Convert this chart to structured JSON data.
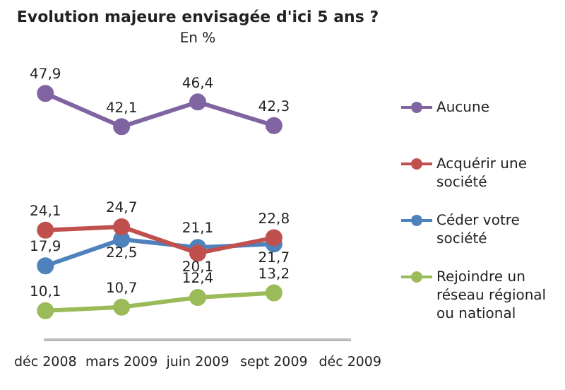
{
  "chart_data": {
    "type": "line",
    "title": "Evolution majeure envisagée d'ici 5 ans ?",
    "subtitle": "En %",
    "categories": [
      "déc 2008",
      "mars 2009",
      "juin 2009",
      "sept 2009",
      "déc 2009"
    ],
    "series": [
      {
        "name": "Aucune",
        "color": "#8064a2",
        "values": [
          47.9,
          42.1,
          46.4,
          42.3,
          null
        ],
        "value_labels": [
          "47,9",
          "42,1",
          "46,4",
          "42,3",
          null
        ]
      },
      {
        "name": "Acquérir une société",
        "color": "#c0504d",
        "values": [
          24.1,
          24.7,
          20.1,
          22.8,
          null
        ],
        "value_labels": [
          "24,1",
          "24,7",
          "20,1",
          "22,8",
          null
        ]
      },
      {
        "name": "Céder votre société",
        "color": "#4f81bd",
        "values": [
          17.9,
          22.5,
          21.1,
          21.7,
          null
        ],
        "value_labels": [
          "17,9",
          "22,5",
          "21,1",
          "21,7",
          null
        ]
      },
      {
        "name": "Rejoindre un réseau régional ou national",
        "color": "#9bbb59",
        "values": [
          10.1,
          10.7,
          12.4,
          13.2,
          null
        ],
        "value_labels": [
          "10,1",
          "10,7",
          "12,4",
          "13,2",
          null
        ]
      }
    ],
    "tick_labels": "x",
    "grid": false,
    "legend": "right",
    "marker": "circle",
    "line_style": "solid"
  }
}
